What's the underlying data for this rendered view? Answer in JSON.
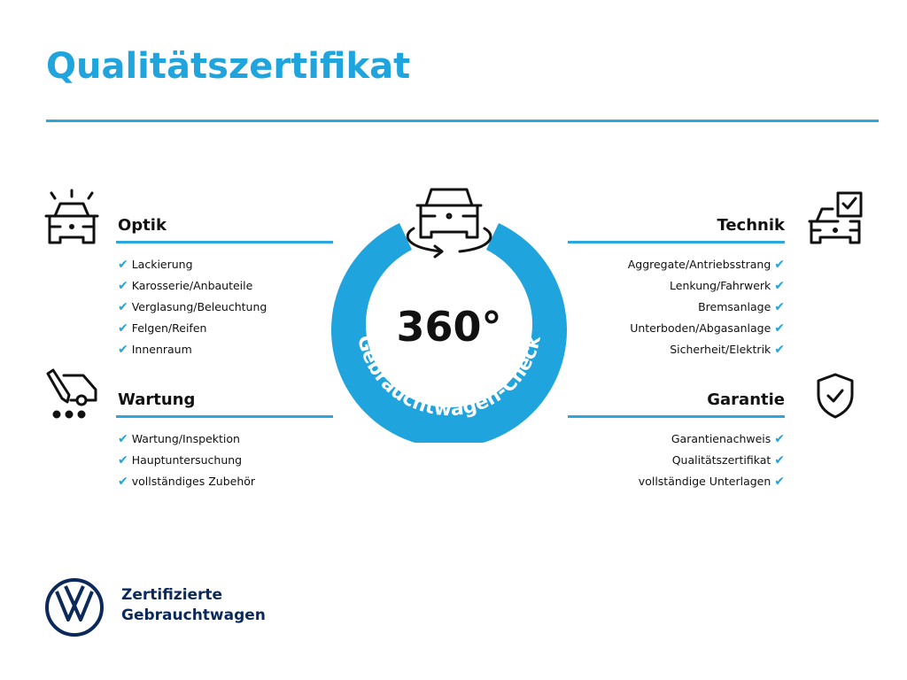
{
  "title": "Qualitätszertifikat",
  "accent_color": "#1fa4dd",
  "badge": {
    "number": "360°",
    "arc_text": "Gebrauchtwagen-Check",
    "icon": "car-rotate-icon"
  },
  "sections": {
    "optik": {
      "title": "Optik",
      "icon": "car-lights-icon",
      "items": [
        "Lackierung",
        "Karosserie/Anbauteile",
        "Verglasung/Beleuchtung",
        "Felgen/Reifen",
        "Innenraum"
      ]
    },
    "wartung": {
      "title": "Wartung",
      "icon": "service-car-icon",
      "items": [
        "Wartung/Inspektion",
        "Hauptuntersuchung",
        "vollständiges Zubehör"
      ]
    },
    "technik": {
      "title": "Technik",
      "icon": "car-checklist-icon",
      "items": [
        "Aggregate/Antriebsstrang",
        "Lenkung/Fahrwerk",
        "Bremsanlage",
        "Unterboden/Abgasanlage",
        "Sicherheit/Elektrik"
      ]
    },
    "garantie": {
      "title": "Garantie",
      "icon": "shield-check-icon",
      "items": [
        "Garantienachweis",
        "Qualitätszertifikat",
        "vollständige Unterlagen"
      ]
    }
  },
  "check_mark": "✔",
  "footer": {
    "line1": "Zertifizierte",
    "line2": "Gebrauchtwagen",
    "logo": "vw-logo"
  }
}
